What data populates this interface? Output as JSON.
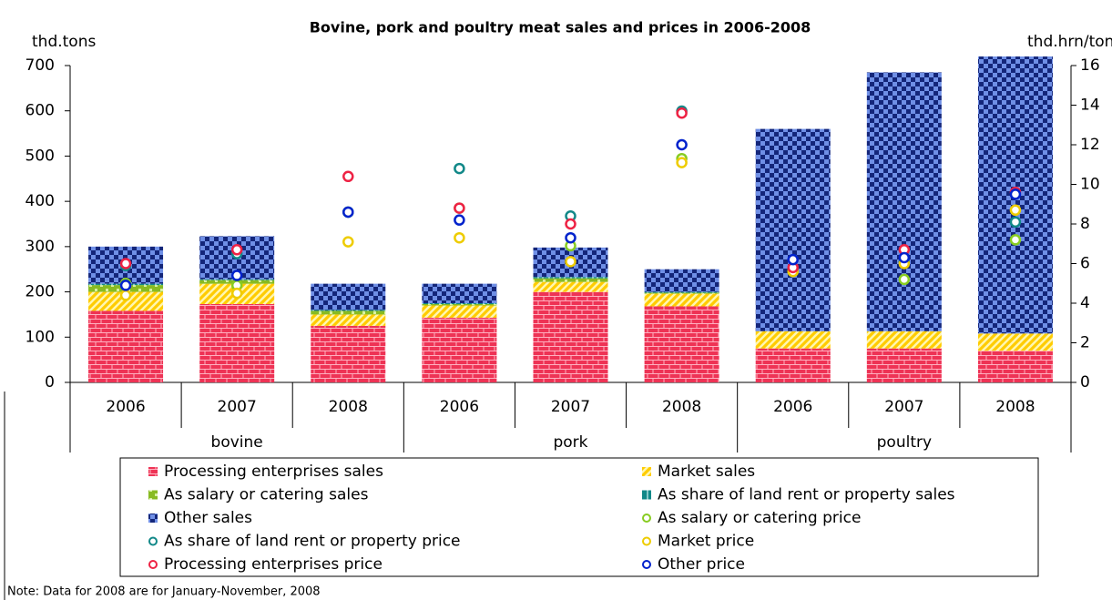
{
  "chart_data": {
    "type": "bar",
    "title": "Bovine, pork and poultry meat sales and prices in 2006-2008",
    "y_label": "thd.tons",
    "y2_label": "thd.hrn/ton",
    "categories": [
      "2006",
      "2007",
      "2008",
      "2006",
      "2007",
      "2008",
      "2006",
      "2007",
      "2008"
    ],
    "groups": [
      "bovine",
      "pork",
      "poultry"
    ],
    "stacked": true,
    "ylim": [
      0,
      700
    ],
    "yticks": [
      0,
      100,
      200,
      300,
      400,
      500,
      600,
      700
    ],
    "y2lim": [
      0,
      16
    ],
    "y2ticks": [
      0,
      2,
      4,
      6,
      8,
      10,
      12,
      14,
      16
    ],
    "legend": "bottom",
    "series": [
      {
        "name": "Processing enterprises sales",
        "color": "#ee3355",
        "values": [
          158,
          173,
          125,
          143,
          200,
          168,
          75,
          75,
          70
        ]
      },
      {
        "name": "Market sales",
        "color": "#ffcc00",
        "values": [
          42,
          45,
          25,
          27,
          22,
          28,
          38,
          38,
          38
        ]
      },
      {
        "name": "As salary or catering sales",
        "color": "#88bb22",
        "values": [
          15,
          8,
          8,
          3,
          8,
          2,
          0,
          0,
          0
        ]
      },
      {
        "name": "As share of land rent or property sales",
        "color": "#118888",
        "values": [
          3,
          2,
          2,
          2,
          3,
          2,
          0,
          0,
          0
        ]
      },
      {
        "name": "Other sales",
        "color": "#14267a",
        "values": [
          82,
          95,
          58,
          43,
          65,
          50,
          447,
          572,
          612
        ]
      },
      {
        "name": "As salary or catering price",
        "color": "#88cc22",
        "axis": "y2",
        "values": [
          5.0,
          4.9,
          8.6,
          8.8,
          6.9,
          11.3,
          5.6,
          5.2,
          7.2
        ]
      },
      {
        "name": "As share of land rent or property price",
        "color": "#118888",
        "axis": "y2",
        "values": [
          5.9,
          6.5,
          8.6,
          10.8,
          8.4,
          13.7,
          5.7,
          6.1,
          8.1
        ]
      },
      {
        "name": "Market price",
        "color": "#eecc00",
        "axis": "y2",
        "values": [
          4.4,
          4.5,
          7.1,
          7.3,
          6.1,
          11.1,
          5.6,
          6.0,
          8.7
        ]
      },
      {
        "name": "Processing enterprises price",
        "color": "#ee2244",
        "axis": "y2",
        "values": [
          6.0,
          6.7,
          10.4,
          8.8,
          8.0,
          13.6,
          5.8,
          6.7,
          9.6
        ]
      },
      {
        "name": "Other price",
        "color": "#0022cc",
        "axis": "y2",
        "values": [
          4.9,
          5.4,
          8.6,
          8.2,
          7.3,
          12.0,
          6.2,
          6.3,
          9.5
        ]
      }
    ],
    "note": "Note: Data for 2008 are for January-November, 2008"
  }
}
